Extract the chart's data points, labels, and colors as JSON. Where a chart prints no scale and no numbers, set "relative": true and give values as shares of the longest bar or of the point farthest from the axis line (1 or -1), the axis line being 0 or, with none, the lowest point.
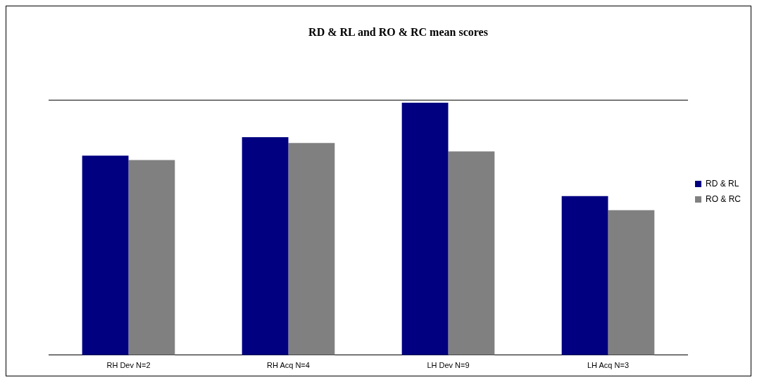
{
  "chart_data": {
    "type": "bar",
    "title": "RD & RL and RO & RC mean scores",
    "relative": true,
    "categories": [
      "RH Dev N=2",
      "RH Acq N=4",
      "LH Dev N=9",
      "LH Acq N=3"
    ],
    "series": [
      {
        "name": "RD & RL",
        "color": "#000080",
        "values": [
          0.79,
          0.863,
          1,
          0.63
        ]
      },
      {
        "name": "RO & RC",
        "color": "#808080",
        "values": [
          0.773,
          0.84,
          0.807,
          0.574
        ]
      }
    ],
    "ref_lines": [
      {
        "axis": "y",
        "value": 1.01,
        "color": "#000000"
      }
    ],
    "legend": "right"
  }
}
